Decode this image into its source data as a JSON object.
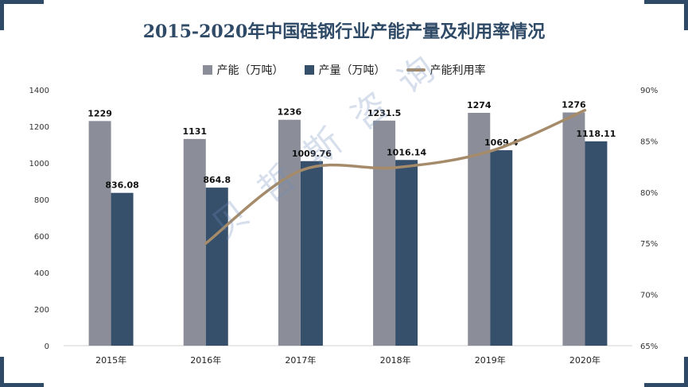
{
  "chart_data": {
    "type": "bar",
    "title": "2015-2020年中国硅钢行业产能产量及利用率情况",
    "categories": [
      "2015年",
      "2016年",
      "2017年",
      "2018年",
      "2019年",
      "2020年"
    ],
    "series": [
      {
        "name": "产能（万吨）",
        "type": "bar",
        "axis": "left",
        "color": "#8b8e99",
        "values": [
          1229,
          1131,
          1236,
          1231.5,
          1274,
          1276
        ],
        "labels": [
          "1229",
          "1131",
          "1236",
          "1231.5",
          "1274",
          "1276"
        ]
      },
      {
        "name": "产量（万吨）",
        "type": "bar",
        "axis": "left",
        "color": "#364f6b",
        "values": [
          836.08,
          864.8,
          1009.76,
          1016.14,
          1069.4,
          1118.11
        ],
        "labels": [
          "836.08",
          "864.8",
          "1009.76",
          "1016.14",
          "1069.4",
          "1118.11"
        ]
      },
      {
        "name": "产能利用率",
        "type": "line",
        "axis": "right",
        "color": "#a58b69",
        "values": [
          null,
          75.0,
          82.1,
          82.4,
          84.0,
          88.0
        ]
      }
    ],
    "y_left": {
      "min": 0,
      "max": 1400,
      "ticks": [
        "0",
        "200",
        "400",
        "600",
        "800",
        "1000",
        "1200",
        "1400"
      ]
    },
    "y_right": {
      "min": 65,
      "max": 90,
      "ticks": [
        "65%",
        "70%",
        "75%",
        "80%",
        "85%",
        "90%"
      ]
    },
    "grid": false,
    "legend_position": "top"
  },
  "watermark": "贝哲斯咨询"
}
